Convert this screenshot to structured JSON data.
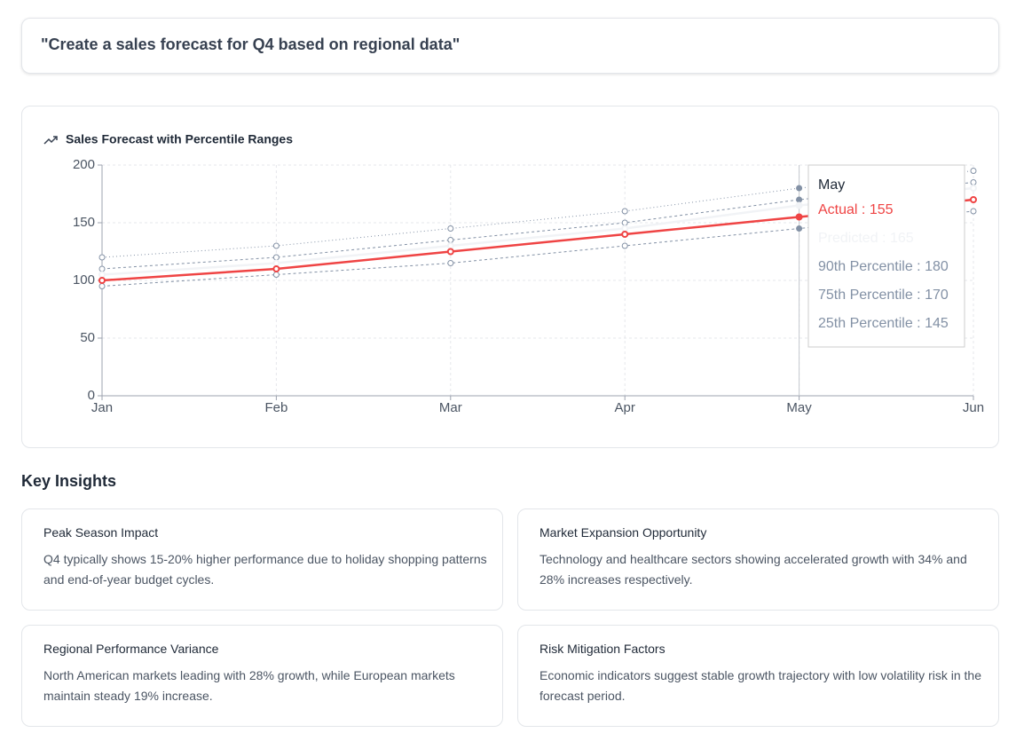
{
  "prompt": "\"Create a sales forecast for Q4 based on regional data\"",
  "chart_data": {
    "type": "line",
    "title": "Sales Forecast with Percentile Ranges",
    "categories": [
      "Jan",
      "Feb",
      "Mar",
      "Apr",
      "May",
      "Jun"
    ],
    "ylim": [
      0,
      200
    ],
    "yticks": [
      0,
      50,
      100,
      150,
      200
    ],
    "grid": true,
    "tooltip_separator": " : ",
    "series": [
      {
        "name": "Actual",
        "color": "#ef4444",
        "line_style": "solid",
        "values": [
          100,
          110,
          125,
          140,
          155,
          170
        ]
      },
      {
        "name": "Predicted",
        "color": "#f1f3f6",
        "line_style": "solid",
        "values": [
          105,
          115,
          130,
          145,
          165,
          180
        ]
      },
      {
        "name": "90th Percentile",
        "color": "#8391a5",
        "line_style": "dotted",
        "values": [
          120,
          130,
          145,
          160,
          180,
          195
        ]
      },
      {
        "name": "75th Percentile",
        "color": "#8391a5",
        "line_style": "dashed",
        "values": [
          110,
          120,
          135,
          150,
          170,
          185
        ]
      },
      {
        "name": "25th Percentile",
        "color": "#8391a5",
        "line_style": "dashed",
        "values": [
          95,
          105,
          115,
          130,
          145,
          160
        ]
      }
    ]
  },
  "insights": {
    "heading": "Key Insights",
    "cards": [
      {
        "title": "Peak Season Impact",
        "text": "Q4 typically shows 15-20% higher performance due to holiday shopping patterns and end-of-year budget cycles."
      },
      {
        "title": "Market Expansion Opportunity",
        "text": "Technology and healthcare sectors showing accelerated growth with 34% and 28% increases respectively."
      },
      {
        "title": "Regional Performance Variance",
        "text": "North American markets leading with 28% growth, while European markets maintain steady 19% increase."
      },
      {
        "title": "Risk Mitigation Factors",
        "text": "Economic indicators suggest stable growth trajectory with low volatility risk in the forecast period."
      }
    ]
  }
}
